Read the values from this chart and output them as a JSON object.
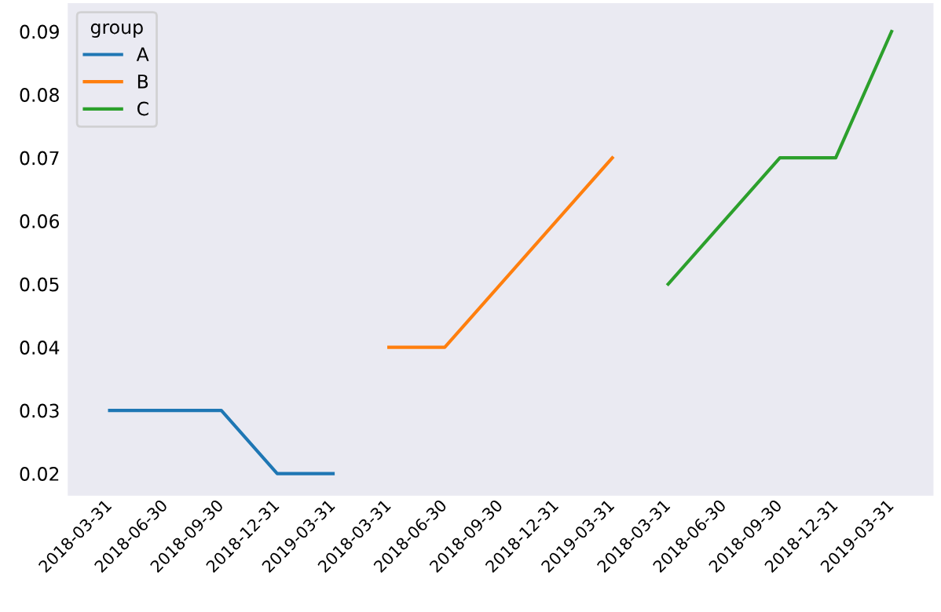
{
  "chart_data": {
    "type": "line",
    "categories": [
      "2018-03-31",
      "2018-06-30",
      "2018-09-30",
      "2018-12-31",
      "2019-03-31",
      "2018-03-31",
      "2018-06-30",
      "2018-09-30",
      "2018-12-31",
      "2019-03-31",
      "2018-03-31",
      "2018-06-30",
      "2018-09-30",
      "2018-12-31",
      "2019-03-31"
    ],
    "series": [
      {
        "name": "A",
        "color": "#1f77b4",
        "values": [
          0.03,
          0.03,
          0.03,
          0.02,
          0.02,
          null,
          null,
          null,
          null,
          null,
          null,
          null,
          null,
          null,
          null
        ]
      },
      {
        "name": "B",
        "color": "#ff7f0e",
        "values": [
          null,
          null,
          null,
          null,
          null,
          0.04,
          0.04,
          0.05,
          0.06,
          0.07,
          null,
          null,
          null,
          null,
          null
        ]
      },
      {
        "name": "C",
        "color": "#2ca02c",
        "values": [
          null,
          null,
          null,
          null,
          null,
          null,
          null,
          null,
          null,
          null,
          0.05,
          0.06,
          0.07,
          0.07,
          0.09
        ]
      }
    ],
    "legend_title": "group",
    "legend": "top left",
    "ylim": [
      0.0165,
      0.0945
    ],
    "yticks": [
      {
        "value": 0.02,
        "label": "0.02"
      },
      {
        "value": 0.03,
        "label": "0.03"
      },
      {
        "value": 0.04,
        "label": "0.04"
      },
      {
        "value": 0.05,
        "label": "0.05"
      },
      {
        "value": 0.06,
        "label": "0.06"
      },
      {
        "value": 0.07,
        "label": "0.07"
      },
      {
        "value": 0.08,
        "label": "0.08"
      },
      {
        "value": 0.09,
        "label": "0.09"
      }
    ],
    "grid": false
  }
}
